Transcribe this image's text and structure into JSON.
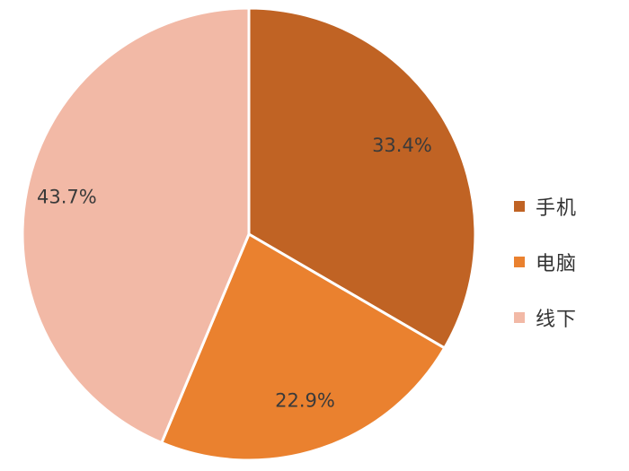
{
  "chart_data": {
    "type": "pie",
    "title": "",
    "legend_position": "right",
    "slices": [
      {
        "name": "手机",
        "value": 33.4,
        "label": "33.4%",
        "color": "#C06324"
      },
      {
        "name": "电脑",
        "value": 22.9,
        "label": "22.9%",
        "color": "#EA812F"
      },
      {
        "name": "线下",
        "value": 43.7,
        "label": "43.7%",
        "color": "#F2B9A6"
      }
    ]
  }
}
